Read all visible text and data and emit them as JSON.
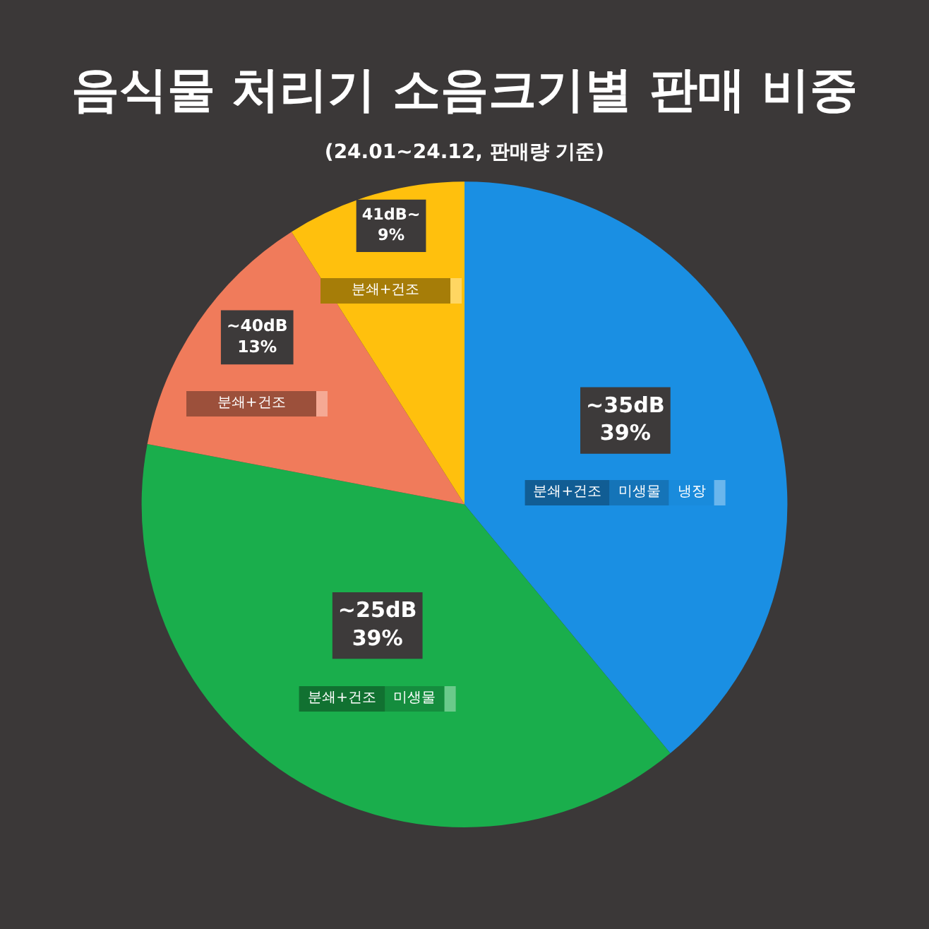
{
  "chart_data": {
    "type": "pie",
    "title": "음식물 처리기 소음크기별 판매 비중",
    "subtitle": "(24.01~24.12, 판매량 기준)",
    "categories": [
      "~35dB",
      "~25dB",
      "~40dB",
      "41dB~"
    ],
    "values": [
      39,
      39,
      13,
      9
    ],
    "colors": [
      "#1a8fe3",
      "#1aae4c",
      "#f07b5b",
      "#ffc00d"
    ],
    "value_labels": [
      "39%",
      "39%",
      "13%",
      "9%"
    ],
    "annotations": [
      {
        "text": "분쇄+건조",
        "x": "~35dB"
      },
      {
        "text": "미생물",
        "x": "~35dB"
      },
      {
        "text": "냉장",
        "x": "~35dB"
      },
      {
        "text": "분쇄+건조",
        "x": "~25dB"
      },
      {
        "text": "미생물",
        "x": "~25dB"
      },
      {
        "text": "분쇄+건조",
        "x": "~40dB"
      },
      {
        "text": "분쇄+건조",
        "x": "41dB~"
      }
    ]
  }
}
